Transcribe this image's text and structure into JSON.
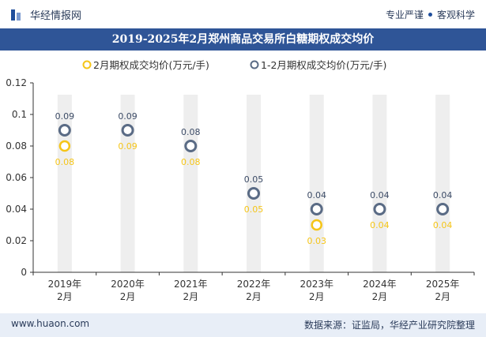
{
  "header": {
    "brand": "华经情报网",
    "tagline_left": "专业严谨",
    "tagline_right": "客观科学"
  },
  "footer": {
    "url": "www.huaon.com",
    "source": "数据来源：证监局，华经产业研究院整理"
  },
  "colors": {
    "header_bar": "#2f5597",
    "series1": "#f5c518",
    "series2": "#5a6b85",
    "bar_bg": "#eeeeee"
  },
  "chart_data": {
    "type": "line",
    "title": "2019-2025年2月郑州商品交易所白糖期权成交均价",
    "categories": [
      "2019年\n2月",
      "2020年\n2月",
      "2021年\n2月",
      "2022年\n2月",
      "2023年\n2月",
      "2024年\n2月",
      "2025年\n2月"
    ],
    "series": [
      {
        "name": "2月期权成交均价(万元/手)",
        "values": [
          0.08,
          0.09,
          0.08,
          0.05,
          0.03,
          0.04,
          0.04
        ]
      },
      {
        "name": "1-2月期权成交均价(万元/手)",
        "values": [
          0.09,
          0.09,
          0.08,
          0.05,
          0.04,
          0.04,
          0.04
        ]
      }
    ],
    "ylim": [
      0,
      0.12
    ],
    "yticks": [
      "0",
      "0.02",
      "0.04",
      "0.06",
      "0.08",
      "0.1",
      "0.12"
    ],
    "legend": "top-center",
    "grid": false
  }
}
